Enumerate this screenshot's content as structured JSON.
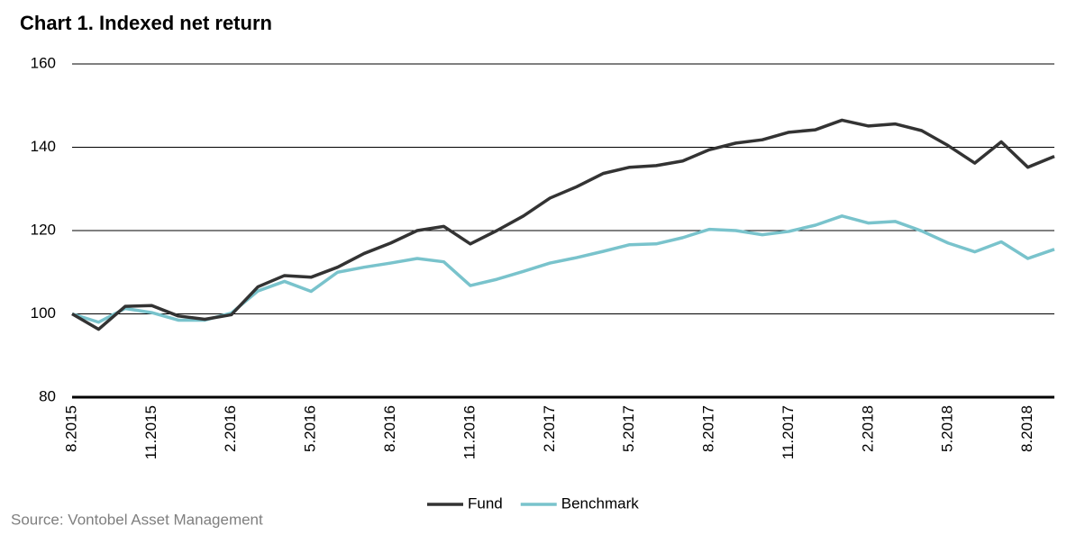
{
  "chart_data": {
    "type": "line",
    "title": "Chart 1. Indexed net return",
    "categories": [
      "8.2015",
      null,
      null,
      "11.2015",
      null,
      null,
      "2.2016",
      null,
      null,
      "5.2016",
      null,
      null,
      "8.2016",
      null,
      null,
      "11.2016",
      null,
      null,
      "2.2017",
      null,
      null,
      "5.2017",
      null,
      null,
      "8.2017",
      null,
      null,
      "11.2017",
      null,
      null,
      "2.2018",
      null,
      null,
      "5.2018",
      null,
      null,
      "8.2018",
      null
    ],
    "series": [
      {
        "name": "Fund",
        "color": "#333333",
        "values": [
          100,
          96.3,
          101.8,
          102,
          99.5,
          98.7,
          99.8,
          106.5,
          109.2,
          108.8,
          111.2,
          114.5,
          117,
          120,
          121,
          116.8,
          120,
          123.5,
          127.8,
          130.5,
          133.7,
          135.2,
          135.6,
          136.7,
          139.4,
          141,
          141.8,
          143.6,
          144.2,
          146.5,
          145.1,
          145.6,
          144,
          140.4,
          136.2,
          141.3,
          135.2,
          137.8
        ]
      },
      {
        "name": "Benchmark",
        "color": "#79c3cc",
        "values": [
          100,
          98,
          101.3,
          100.3,
          98.5,
          98.5,
          100.2,
          105.5,
          107.8,
          105.4,
          110,
          111.2,
          112.2,
          113.3,
          112.5,
          106.8,
          108.3,
          110.2,
          112.2,
          113.5,
          115,
          116.6,
          116.8,
          118.3,
          120.3,
          120,
          119,
          119.8,
          121.3,
          123.5,
          121.8,
          122.2,
          119.9,
          117,
          114.9,
          117.3,
          113.3,
          115.5
        ]
      }
    ],
    "ylim": [
      80,
      160
    ],
    "yticks": [
      80,
      100,
      120,
      140,
      160
    ],
    "grid": true,
    "legend": "bottom",
    "source": "Source: Vontobel Asset Management"
  }
}
